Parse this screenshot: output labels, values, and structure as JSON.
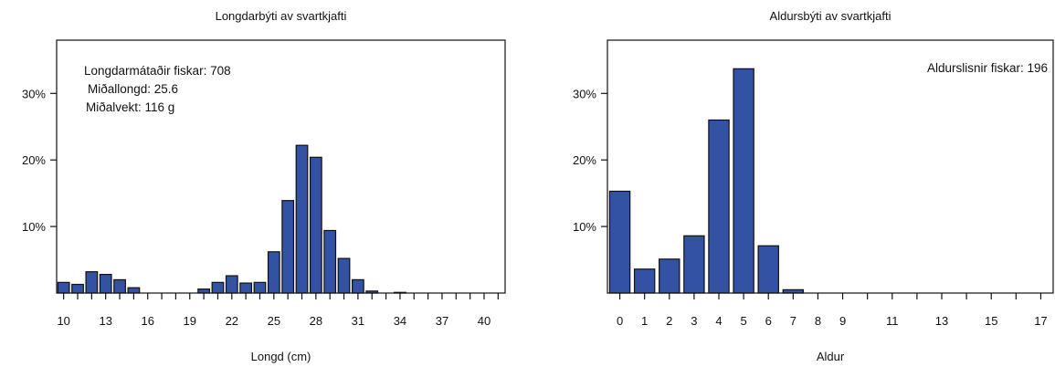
{
  "chart_data": [
    {
      "type": "bar",
      "title": "Longdarbýti av svartkjafti",
      "xlabel": "Longd (cm)",
      "ylabel": "",
      "annotations": [
        "Longdarmátaðir fiskar: 708",
        "Miðallongd: 25.6",
        "Miðalvekt: 116 g"
      ],
      "x": [
        10,
        11,
        12,
        13,
        14,
        15,
        16,
        17,
        18,
        19,
        20,
        21,
        22,
        23,
        24,
        25,
        26,
        27,
        28,
        29,
        30,
        31,
        32,
        33,
        34,
        35,
        36,
        37,
        38,
        39,
        40,
        41
      ],
      "values": [
        1.6,
        1.3,
        3.2,
        2.8,
        2.0,
        0.8,
        0,
        0,
        0,
        0,
        0.6,
        1.6,
        2.6,
        1.5,
        1.6,
        6.2,
        13.9,
        22.2,
        20.4,
        9.4,
        5.2,
        2.0,
        0.3,
        0,
        0.1,
        0,
        0,
        0,
        0,
        0,
        0,
        0
      ],
      "xlim": [
        9.5,
        41.5
      ],
      "ylim": [
        0,
        38
      ],
      "xticks": [
        10,
        11,
        12,
        13,
        14,
        15,
        16,
        17,
        18,
        19,
        20,
        21,
        22,
        23,
        24,
        25,
        26,
        27,
        28,
        29,
        30,
        31,
        32,
        33,
        34,
        35,
        36,
        37,
        38,
        39,
        40,
        41
      ],
      "xtick_labels": [
        "10",
        "13",
        "16",
        "19",
        "22",
        "25",
        "28",
        "31",
        "34",
        "37",
        "40"
      ],
      "xtick_label_values": [
        10,
        13,
        16,
        19,
        22,
        25,
        28,
        31,
        34,
        37,
        40
      ],
      "yticks": [
        10,
        20,
        30
      ],
      "ytick_labels": [
        "10%",
        "20%",
        "30%"
      ],
      "bar_color": "#3352a3",
      "grid": false
    },
    {
      "type": "bar",
      "title": "Aldursbýti av svartkjafti",
      "xlabel": "Aldur",
      "ylabel": "",
      "annotations": [
        "Aldurslisnir fiskar: 196"
      ],
      "x": [
        0,
        1,
        2,
        3,
        4,
        5,
        6,
        7,
        8,
        9,
        10,
        11,
        12,
        13,
        14,
        15,
        16,
        17
      ],
      "values": [
        15.3,
        3.6,
        5.1,
        8.6,
        26.0,
        33.7,
        7.1,
        0.5,
        0,
        0,
        0,
        0,
        0,
        0,
        0,
        0,
        0,
        0
      ],
      "xlim": [
        -0.5,
        17.5
      ],
      "ylim": [
        0,
        38
      ],
      "xticks": [
        0,
        1,
        2,
        3,
        4,
        5,
        6,
        7,
        8,
        9,
        10,
        11,
        12,
        13,
        14,
        15,
        16,
        17
      ],
      "xtick_labels": [
        "0",
        "1",
        "2",
        "3",
        "4",
        "5",
        "6",
        "7",
        "8",
        "9",
        "11",
        "13",
        "15",
        "17"
      ],
      "xtick_label_values": [
        0,
        1,
        2,
        3,
        4,
        5,
        6,
        7,
        8,
        9,
        11,
        13,
        15,
        17
      ],
      "yticks": [
        10,
        20,
        30
      ],
      "ytick_labels": [
        "10%",
        "20%",
        "30%"
      ],
      "bar_color": "#3352a3",
      "grid": false
    }
  ]
}
